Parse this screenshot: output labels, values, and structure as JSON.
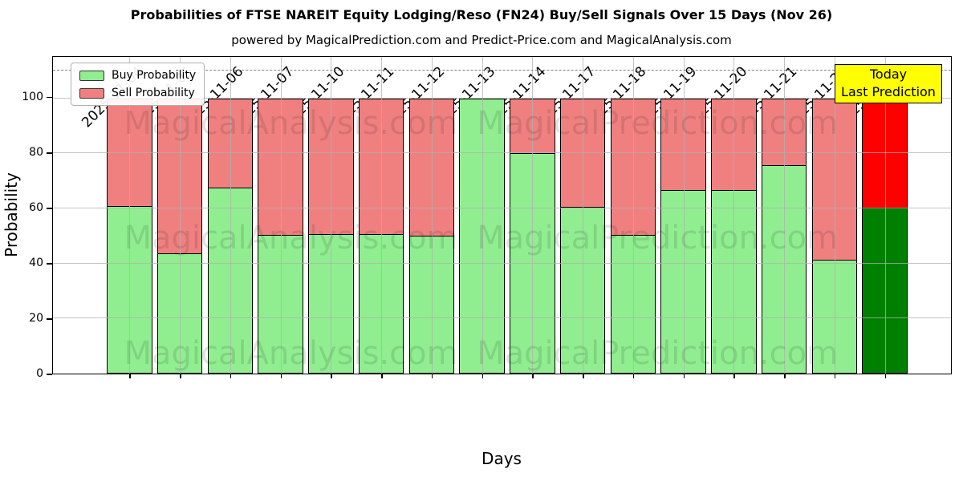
{
  "title": "Probabilities of FTSE NAREIT Equity Lodging/Reso (FN24) Buy/Sell Signals Over 15 Days (Nov 26)",
  "subtitle": "powered by MagicalPrediction.com and Predict-Price.com and MagicalAnalysis.com",
  "legend": {
    "items": [
      {
        "label": "Buy Probability",
        "color": "#90EE90"
      },
      {
        "label": "Sell Probability",
        "color": "#F08080"
      }
    ]
  },
  "annotation": {
    "lines": [
      "Today",
      "Last Prediction"
    ],
    "bg": "#FFFF00"
  },
  "watermarks": {
    "left": "MagicalAnalysis.com",
    "right": "MagicalPrediction.com"
  },
  "chart_data": {
    "type": "bar",
    "stacked": true,
    "title": "Probabilities of FTSE NAREIT Equity Lodging/Reso (FN24) Buy/Sell Signals Over 15 Days (Nov 26)",
    "xlabel": "Days",
    "ylabel": "Probability",
    "ylim": [
      0,
      115
    ],
    "yticks": [
      0,
      20,
      40,
      60,
      80,
      100
    ],
    "dashed_line_y": 110,
    "grid": true,
    "legend_position": "upper left",
    "categories": [
      "2025-11-04",
      "2025-11-05",
      "2025-11-06",
      "2025-11-07",
      "2025-11-10",
      "2025-11-11",
      "2025-11-12",
      "2025-11-13",
      "2025-11-14",
      "2025-11-17",
      "2025-11-18",
      "2025-11-19",
      "2025-11-20",
      "2025-11-21",
      "2025-11-24",
      "2025-11-25"
    ],
    "series": [
      {
        "name": "Buy Probability",
        "color": "#90EE90",
        "values": [
          60.5,
          43.5,
          67.2,
          50.0,
          50.3,
          50.5,
          49.8,
          100.0,
          79.8,
          60.2,
          50.0,
          66.5,
          66.4,
          75.4,
          41.0,
          60.0
        ]
      },
      {
        "name": "Sell Probability",
        "color": "#F08080",
        "values": [
          39.5,
          56.5,
          32.8,
          50.0,
          49.7,
          49.5,
          50.2,
          0.0,
          20.2,
          39.8,
          50.0,
          33.5,
          33.6,
          24.6,
          59.0,
          40.0
        ]
      }
    ],
    "today": {
      "category": "2025-11-25",
      "buy": 60.0,
      "sell": 40.0,
      "buy_color": "#008000",
      "sell_color": "#FF0000"
    }
  }
}
